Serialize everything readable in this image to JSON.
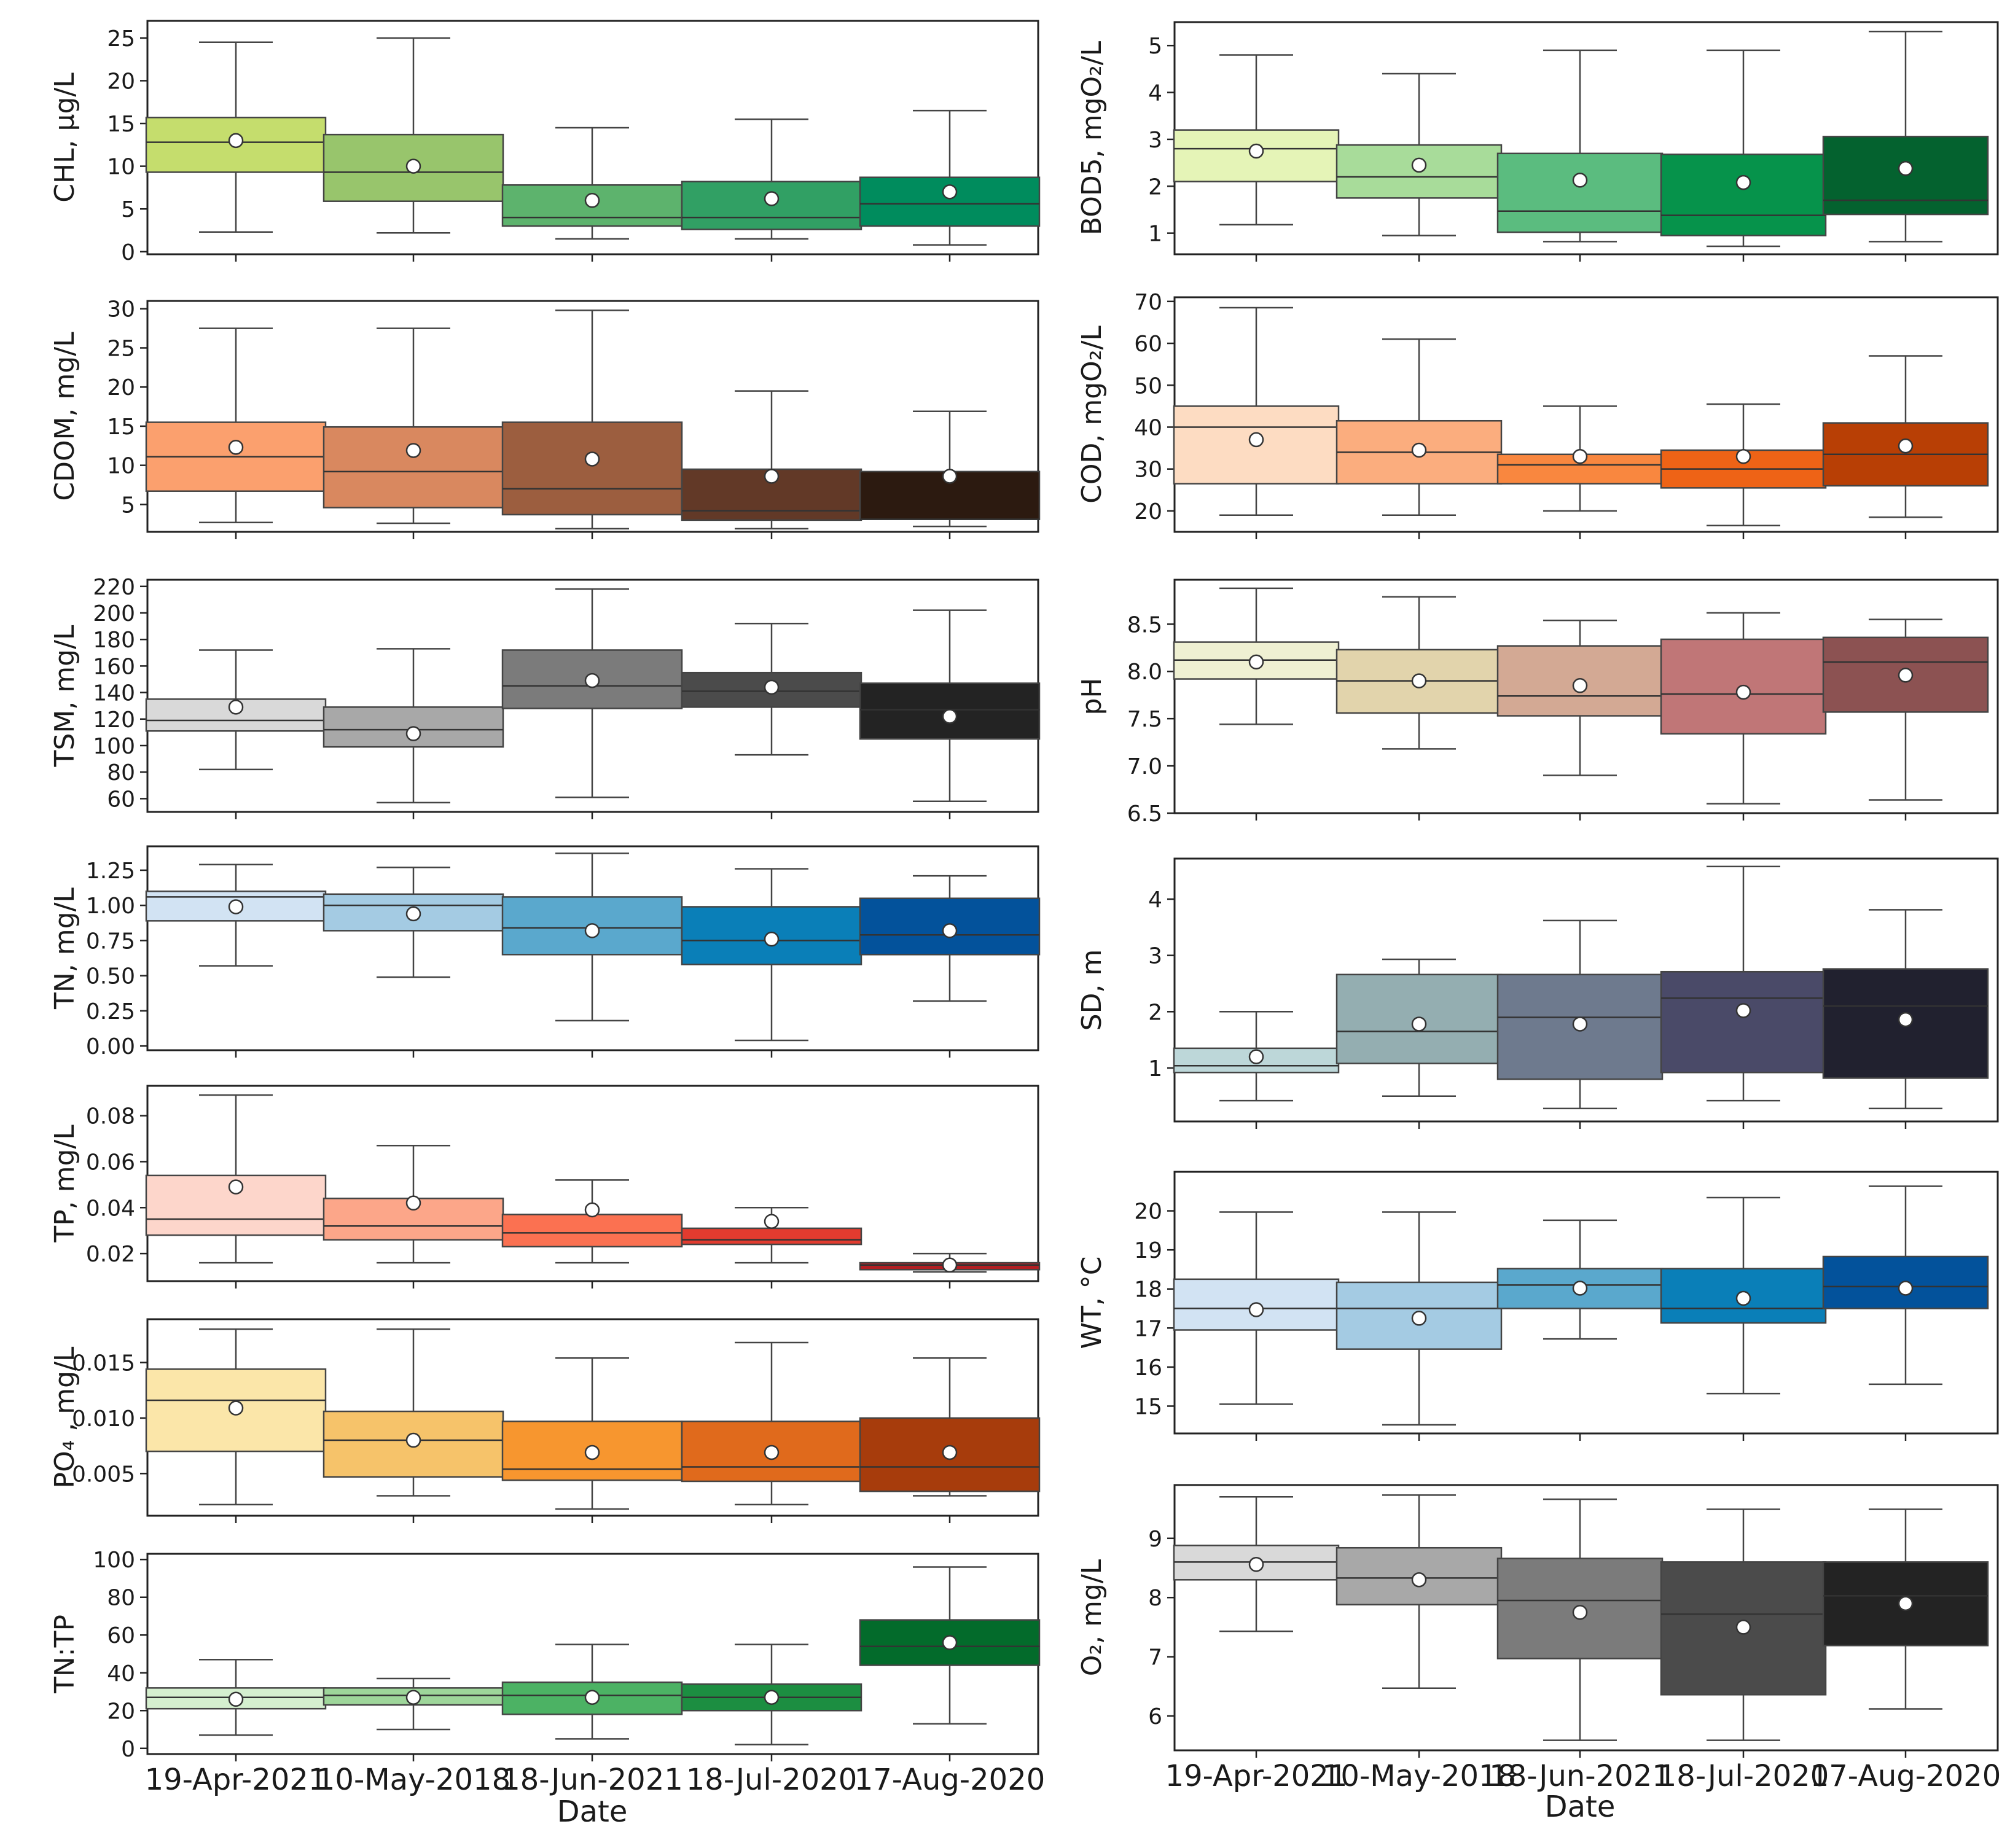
{
  "figure": {
    "left_xlabel": "Date",
    "right_xlabel": "Date",
    "dates": [
      "19-Apr-2021",
      "10-May-2018",
      "18-Jun-2021",
      "18-Jul-2020",
      "17-Aug-2020"
    ]
  },
  "chart_data": [
    {
      "type": "box",
      "column": "left",
      "row": 0,
      "ylabel": "CHL, µg/L",
      "ylim": [
        -0.3,
        27
      ],
      "yticks": [
        0,
        5,
        10,
        15,
        20,
        25
      ],
      "tick_format": "int",
      "colors": [
        "#c5dd6d",
        "#98c56c",
        "#5db36d",
        "#31a064",
        "#008c5d"
      ],
      "boxes": [
        {
          "whislo": 2.3,
          "q1": 9.3,
          "med": 12.8,
          "q3": 15.7,
          "whishi": 24.5,
          "mean": 13.0
        },
        {
          "whislo": 2.2,
          "q1": 5.9,
          "med": 9.3,
          "q3": 13.7,
          "whishi": 25.0,
          "mean": 10.0
        },
        {
          "whislo": 1.5,
          "q1": 3.0,
          "med": 4.0,
          "q3": 7.8,
          "whishi": 14.5,
          "mean": 6.0
        },
        {
          "whislo": 1.5,
          "q1": 2.6,
          "med": 4.0,
          "q3": 8.2,
          "whishi": 15.5,
          "mean": 6.2
        },
        {
          "whislo": 0.8,
          "q1": 3.0,
          "med": 5.6,
          "q3": 8.7,
          "whishi": 16.5,
          "mean": 7.0
        }
      ]
    },
    {
      "type": "box",
      "column": "left",
      "row": 1,
      "ylabel": "CDOM, mg/L",
      "ylim": [
        1.5,
        31
      ],
      "yticks": [
        5,
        10,
        15,
        20,
        25,
        30
      ],
      "tick_format": "int",
      "colors": [
        "#fba06e",
        "#d9885f",
        "#9c5e3f",
        "#623927",
        "#2c1a10"
      ],
      "boxes": [
        {
          "whislo": 2.7,
          "q1": 6.7,
          "med": 11.1,
          "q3": 15.5,
          "whishi": 27.5,
          "mean": 12.3
        },
        {
          "whislo": 2.6,
          "q1": 4.6,
          "med": 9.2,
          "q3": 14.9,
          "whishi": 27.5,
          "mean": 11.9
        },
        {
          "whislo": 1.9,
          "q1": 3.7,
          "med": 7.0,
          "q3": 15.5,
          "whishi": 29.8,
          "mean": 10.8
        },
        {
          "whislo": 1.9,
          "q1": 3.0,
          "med": 4.2,
          "q3": 9.5,
          "whishi": 19.5,
          "mean": 8.6
        },
        {
          "whislo": 2.2,
          "q1": 3.1,
          "med": 3.1,
          "q3": 9.2,
          "whishi": 16.9,
          "mean": 8.6
        }
      ]
    },
    {
      "type": "box",
      "column": "left",
      "row": 2,
      "ylabel": "TSM, mg/L",
      "ylim": [
        50,
        225
      ],
      "yticks": [
        60,
        80,
        100,
        120,
        140,
        160,
        180,
        200,
        220
      ],
      "tick_format": "int",
      "colors": [
        "#d9d9d9",
        "#a8a8a8",
        "#7b7b7b",
        "#4b4b4b",
        "#232323"
      ],
      "boxes": [
        {
          "whislo": 82,
          "q1": 111,
          "med": 119,
          "q3": 135,
          "whishi": 172,
          "mean": 129
        },
        {
          "whislo": 57,
          "q1": 99,
          "med": 112,
          "q3": 129,
          "whishi": 173,
          "mean": 109
        },
        {
          "whislo": 61,
          "q1": 128,
          "med": 145,
          "q3": 172,
          "whishi": 218,
          "mean": 149
        },
        {
          "whislo": 93,
          "q1": 129,
          "med": 141,
          "q3": 155,
          "whishi": 192,
          "mean": 144
        },
        {
          "whislo": 58,
          "q1": 105,
          "med": 127,
          "q3": 147,
          "whishi": 202,
          "mean": 122
        }
      ]
    },
    {
      "type": "box",
      "column": "left",
      "row": 3,
      "ylabel": "TN, mg/L",
      "ylim": [
        -0.03,
        1.42
      ],
      "yticks": [
        0,
        0.25,
        0.5,
        0.75,
        1.0,
        1.25
      ],
      "tick_format": "2dp",
      "colors": [
        "#d2e3f3",
        "#a4cbe3",
        "#5aa8cd",
        "#0a7fb8",
        "#03529b"
      ],
      "boxes": [
        {
          "whislo": 0.57,
          "q1": 0.89,
          "med": 1.06,
          "q3": 1.1,
          "whishi": 1.29,
          "mean": 0.99
        },
        {
          "whislo": 0.49,
          "q1": 0.82,
          "med": 1.0,
          "q3": 1.08,
          "whishi": 1.27,
          "mean": 0.94
        },
        {
          "whislo": 0.18,
          "q1": 0.65,
          "med": 0.84,
          "q3": 1.06,
          "whishi": 1.37,
          "mean": 0.82
        },
        {
          "whislo": 0.04,
          "q1": 0.58,
          "med": 0.75,
          "q3": 0.99,
          "whishi": 1.26,
          "mean": 0.76
        },
        {
          "whislo": 0.32,
          "q1": 0.65,
          "med": 0.79,
          "q3": 1.05,
          "whishi": 1.21,
          "mean": 0.82
        }
      ]
    },
    {
      "type": "box",
      "column": "left",
      "row": 4,
      "ylabel": "TP, mg/L",
      "ylim": [
        0.008,
        0.093
      ],
      "yticks": [
        0.02,
        0.04,
        0.06,
        0.08
      ],
      "tick_format": "2dp",
      "colors": [
        "#fdd6cb",
        "#fca689",
        "#fb7151",
        "#e23b2f",
        "#b31e22"
      ],
      "boxes": [
        {
          "whislo": 0.016,
          "q1": 0.028,
          "med": 0.035,
          "q3": 0.054,
          "whishi": 0.089,
          "mean": 0.049
        },
        {
          "whislo": 0.016,
          "q1": 0.026,
          "med": 0.032,
          "q3": 0.044,
          "whishi": 0.067,
          "mean": 0.042
        },
        {
          "whislo": 0.016,
          "q1": 0.023,
          "med": 0.029,
          "q3": 0.037,
          "whishi": 0.052,
          "mean": 0.039
        },
        {
          "whislo": 0.016,
          "q1": 0.024,
          "med": 0.026,
          "q3": 0.031,
          "whishi": 0.04,
          "mean": 0.034
        },
        {
          "whislo": 0.012,
          "q1": 0.013,
          "med": 0.015,
          "q3": 0.016,
          "whishi": 0.02,
          "mean": 0.015
        }
      ]
    },
    {
      "type": "box",
      "column": "left",
      "row": 5,
      "ylabel": "PO₄  , mg/L",
      "ylim": [
        0.0012,
        0.0189
      ],
      "yticks": [
        0.005,
        0.01,
        0.015
      ],
      "tick_format": "3dp",
      "colors": [
        "#fbe6a9",
        "#f6c36a",
        "#f7962f",
        "#e06a1c",
        "#a73c0c"
      ],
      "boxes": [
        {
          "whislo": 0.0022,
          "q1": 0.007,
          "med": 0.0116,
          "q3": 0.0144,
          "whishi": 0.018,
          "mean": 0.0109
        },
        {
          "whislo": 0.003,
          "q1": 0.0047,
          "med": 0.008,
          "q3": 0.0106,
          "whishi": 0.018,
          "mean": 0.008
        },
        {
          "whislo": 0.0018,
          "q1": 0.0044,
          "med": 0.0054,
          "q3": 0.0097,
          "whishi": 0.0154,
          "mean": 0.0069
        },
        {
          "whislo": 0.0022,
          "q1": 0.0043,
          "med": 0.0056,
          "q3": 0.0097,
          "whishi": 0.0168,
          "mean": 0.0069
        },
        {
          "whislo": 0.003,
          "q1": 0.0034,
          "med": 0.0056,
          "q3": 0.01,
          "whishi": 0.0154,
          "mean": 0.0069
        }
      ]
    },
    {
      "type": "box",
      "column": "left",
      "row": 6,
      "ylabel": "TN:TP",
      "ylim": [
        -3,
        103
      ],
      "yticks": [
        0,
        20,
        40,
        60,
        80,
        100
      ],
      "tick_format": "int",
      "colors": [
        "#d5efcf",
        "#9ed69a",
        "#4cb264",
        "#1c8e41",
        "#036b2b"
      ],
      "boxes": [
        {
          "whislo": 7,
          "q1": 21,
          "med": 27,
          "q3": 32,
          "whishi": 47,
          "mean": 26
        },
        {
          "whislo": 10,
          "q1": 23,
          "med": 28,
          "q3": 32,
          "whishi": 37,
          "mean": 27
        },
        {
          "whislo": 5,
          "q1": 18,
          "med": 28,
          "q3": 35,
          "whishi": 55,
          "mean": 27
        },
        {
          "whislo": 2,
          "q1": 20,
          "med": 27,
          "q3": 34,
          "whishi": 55,
          "mean": 27
        },
        {
          "whislo": 13,
          "q1": 44,
          "med": 54,
          "q3": 68,
          "whishi": 96,
          "mean": 56
        }
      ]
    },
    {
      "type": "box",
      "column": "right",
      "row": 0,
      "ylabel": "BOD5, mgO₂/L",
      "ylim": [
        0.55,
        5.5
      ],
      "yticks": [
        1,
        2,
        3,
        4,
        5
      ],
      "tick_format": "int",
      "colors": [
        "#e5f4b7",
        "#a8dc9a",
        "#5bbc7f",
        "#06934b",
        "#04622f"
      ],
      "boxes": [
        {
          "whislo": 1.18,
          "q1": 2.1,
          "med": 2.8,
          "q3": 3.2,
          "whishi": 4.8,
          "mean": 2.75
        },
        {
          "whislo": 0.95,
          "q1": 1.75,
          "med": 2.2,
          "q3": 2.88,
          "whishi": 4.4,
          "mean": 2.45
        },
        {
          "whislo": 0.82,
          "q1": 1.02,
          "med": 1.47,
          "q3": 2.7,
          "whishi": 4.9,
          "mean": 2.13
        },
        {
          "whislo": 0.72,
          "q1": 0.95,
          "med": 1.38,
          "q3": 2.68,
          "whishi": 4.9,
          "mean": 2.08
        },
        {
          "whislo": 0.82,
          "q1": 1.4,
          "med": 1.7,
          "q3": 3.06,
          "whishi": 5.3,
          "mean": 2.38
        }
      ]
    },
    {
      "type": "box",
      "column": "right",
      "row": 1,
      "ylabel": "COD, mgO₂/L",
      "ylim": [
        15,
        71
      ],
      "yticks": [
        20,
        30,
        40,
        50,
        60,
        70
      ],
      "tick_format": "int",
      "colors": [
        "#fddcc2",
        "#fbad7e",
        "#f9873f",
        "#ee6316",
        "#b83f05"
      ],
      "boxes": [
        {
          "whislo": 19,
          "q1": 26.5,
          "med": 40,
          "q3": 45,
          "whishi": 68.5,
          "mean": 37
        },
        {
          "whislo": 19,
          "q1": 26.5,
          "med": 34,
          "q3": 41.5,
          "whishi": 61,
          "mean": 34.5
        },
        {
          "whislo": 20,
          "q1": 26.5,
          "med": 31,
          "q3": 33.5,
          "whishi": 45,
          "mean": 33
        },
        {
          "whislo": 16.5,
          "q1": 25.5,
          "med": 30,
          "q3": 34.5,
          "whishi": 45.5,
          "mean": 33
        },
        {
          "whislo": 18.5,
          "q1": 26,
          "med": 33.5,
          "q3": 41,
          "whishi": 57,
          "mean": 35.5
        }
      ]
    },
    {
      "type": "box",
      "column": "right",
      "row": 2,
      "ylabel": "pH",
      "ylim": [
        6.5,
        8.97
      ],
      "yticks": [
        6.5,
        7.0,
        7.5,
        8.0,
        8.5
      ],
      "tick_format": "1dp",
      "colors": [
        "#eff0d2",
        "#e2d4ac",
        "#d3a994",
        "#c07677",
        "#8c5252"
      ],
      "boxes": [
        {
          "whislo": 7.44,
          "q1": 7.92,
          "med": 8.12,
          "q3": 8.31,
          "whishi": 8.88,
          "mean": 8.1
        },
        {
          "whislo": 7.18,
          "q1": 7.56,
          "med": 7.9,
          "q3": 8.23,
          "whishi": 8.79,
          "mean": 7.9
        },
        {
          "whislo": 6.9,
          "q1": 7.53,
          "med": 7.74,
          "q3": 8.27,
          "whishi": 8.54,
          "mean": 7.85
        },
        {
          "whislo": 6.6,
          "q1": 7.34,
          "med": 7.76,
          "q3": 8.34,
          "whishi": 8.62,
          "mean": 7.78
        },
        {
          "whislo": 6.64,
          "q1": 7.57,
          "med": 8.1,
          "q3": 8.36,
          "whishi": 8.55,
          "mean": 7.96
        }
      ]
    },
    {
      "type": "box",
      "column": "right",
      "row": 3,
      "ylabel": "SD, m",
      "ylim": [
        0.05,
        4.72
      ],
      "yticks": [
        1,
        2,
        3,
        4
      ],
      "tick_format": "int",
      "colors": [
        "#bdd7d9",
        "#94aeb1",
        "#6e7a8e",
        "#4a4a68",
        "#21212f"
      ],
      "boxes": [
        {
          "whislo": 0.42,
          "q1": 0.92,
          "med": 1.04,
          "q3": 1.35,
          "whishi": 2.0,
          "mean": 1.2
        },
        {
          "whislo": 0.5,
          "q1": 1.08,
          "med": 1.65,
          "q3": 2.66,
          "whishi": 2.93,
          "mean": 1.78
        },
        {
          "whislo": 0.28,
          "q1": 0.8,
          "med": 1.9,
          "q3": 2.66,
          "whishi": 3.62,
          "mean": 1.78
        },
        {
          "whislo": 0.42,
          "q1": 0.92,
          "med": 2.24,
          "q3": 2.71,
          "whishi": 4.58,
          "mean": 2.02
        },
        {
          "whislo": 0.28,
          "q1": 0.82,
          "med": 2.1,
          "q3": 2.76,
          "whishi": 3.81,
          "mean": 1.86
        }
      ]
    },
    {
      "type": "box",
      "column": "right",
      "row": 4,
      "ylabel": "WT, °C",
      "ylim": [
        14.3,
        21.0
      ],
      "yticks": [
        15,
        16,
        17,
        18,
        19,
        20
      ],
      "tick_format": "int",
      "colors": [
        "#d2e3f3",
        "#a4cbe3",
        "#5aa8cd",
        "#0a7fb8",
        "#03529b"
      ],
      "boxes": [
        {
          "whislo": 15.05,
          "q1": 16.95,
          "med": 17.5,
          "q3": 18.25,
          "whishi": 19.97,
          "mean": 17.47
        },
        {
          "whislo": 14.52,
          "q1": 16.46,
          "med": 17.5,
          "q3": 18.17,
          "whishi": 19.97,
          "mean": 17.25
        },
        {
          "whislo": 16.72,
          "q1": 17.5,
          "med": 18.1,
          "q3": 18.52,
          "whishi": 19.76,
          "mean": 18.02
        },
        {
          "whislo": 15.32,
          "q1": 17.13,
          "med": 17.5,
          "q3": 18.52,
          "whishi": 20.34,
          "mean": 17.76
        },
        {
          "whislo": 15.56,
          "q1": 17.5,
          "med": 18.06,
          "q3": 18.83,
          "whishi": 20.63,
          "mean": 18.02
        }
      ]
    },
    {
      "type": "box",
      "column": "right",
      "row": 5,
      "ylabel": "O₂, mg/L",
      "ylim": [
        5.42,
        9.9
      ],
      "yticks": [
        6,
        7,
        8,
        9
      ],
      "tick_format": "int",
      "colors": [
        "#d9d9d9",
        "#a8a8a8",
        "#7b7b7b",
        "#4b4b4b",
        "#232323"
      ],
      "boxes": [
        {
          "whislo": 7.43,
          "q1": 8.3,
          "med": 8.6,
          "q3": 8.88,
          "whishi": 9.7,
          "mean": 8.56
        },
        {
          "whislo": 6.47,
          "q1": 7.88,
          "med": 8.33,
          "q3": 8.84,
          "whishi": 9.73,
          "mean": 8.3
        },
        {
          "whislo": 5.59,
          "q1": 6.97,
          "med": 7.95,
          "q3": 8.66,
          "whishi": 9.66,
          "mean": 7.75
        },
        {
          "whislo": 5.59,
          "q1": 6.36,
          "med": 7.72,
          "q3": 8.6,
          "whishi": 9.49,
          "mean": 7.5
        },
        {
          "whislo": 6.12,
          "q1": 7.19,
          "med": 8.03,
          "q3": 8.6,
          "whishi": 9.49,
          "mean": 7.9
        }
      ]
    }
  ]
}
